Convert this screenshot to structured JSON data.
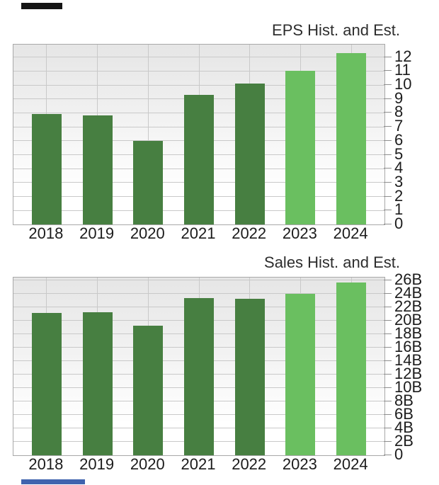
{
  "page": {
    "background": "#ffffff",
    "remnant_top_color": "#151515",
    "remnant_bottom_color": "#3f63ae"
  },
  "colors": {
    "historical_bar": "#477f41",
    "estimate_bar": "#6abf60",
    "gridline": "#c9c9c9",
    "plot_border": "#a8a8a8",
    "text": "#1c1c1c"
  },
  "chart_data": [
    {
      "type": "bar",
      "title": "EPS Hist. and Est.",
      "categories": [
        "2018",
        "2019",
        "2020",
        "2021",
        "2022",
        "2023",
        "2024"
      ],
      "values": [
        7.9,
        7.8,
        6.0,
        9.3,
        10.1,
        11.0,
        12.3
      ],
      "segments": [
        "historical",
        "historical",
        "historical",
        "historical",
        "historical",
        "estimate",
        "estimate"
      ],
      "colors": {
        "historical": "#477f41",
        "estimate": "#6abf60"
      },
      "xlabel": "",
      "ylabel": "",
      "ylim": [
        0,
        12.9
      ],
      "y_ticks": [
        0,
        1,
        2,
        3,
        4,
        5,
        6,
        7,
        8,
        9,
        10,
        11,
        12
      ],
      "y_tick_labels": [
        "0",
        "1",
        "2",
        "3",
        "4",
        "5",
        "6",
        "7",
        "8",
        "9",
        "10",
        "11",
        "12"
      ],
      "y_axis_side": "right",
      "grid": true,
      "legend": "none"
    },
    {
      "type": "bar",
      "title": "Sales Hist. and Est.",
      "categories": [
        "2018",
        "2019",
        "2020",
        "2021",
        "2022",
        "2023",
        "2024"
      ],
      "values": [
        21.1,
        21.2,
        19.3,
        23.3,
        23.2,
        24.0,
        25.7
      ],
      "unit": "B",
      "segments": [
        "historical",
        "historical",
        "historical",
        "historical",
        "historical",
        "estimate",
        "estimate"
      ],
      "colors": {
        "historical": "#477f41",
        "estimate": "#6abf60"
      },
      "xlabel": "",
      "ylabel": "",
      "ylim": [
        0,
        26.4
      ],
      "y_ticks": [
        0,
        2,
        4,
        6,
        8,
        10,
        12,
        14,
        16,
        18,
        20,
        22,
        24,
        26
      ],
      "y_tick_labels": [
        "0",
        "2B",
        "4B",
        "6B",
        "8B",
        "10B",
        "12B",
        "14B",
        "16B",
        "18B",
        "20B",
        "22B",
        "24B",
        "26B"
      ],
      "y_axis_side": "right",
      "grid": true,
      "legend": "none"
    }
  ]
}
